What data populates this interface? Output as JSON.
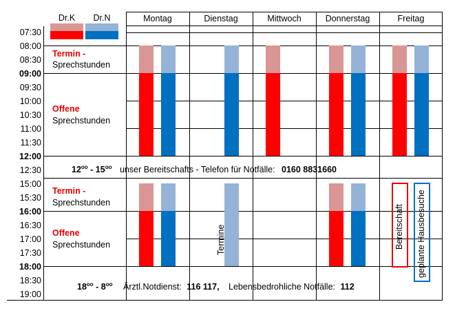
{
  "legend": {
    "doctor_k": "Dr.K",
    "doctor_n": "Dr.N"
  },
  "days": [
    "Montag",
    "Dienstag",
    "Mittwoch",
    "Donnerstag",
    "Freitag"
  ],
  "times": [
    {
      "label": "07:30",
      "bold": false
    },
    {
      "label": "08:00",
      "bold": false
    },
    {
      "label": "08:30",
      "bold": false
    },
    {
      "label": "09:00",
      "bold": true
    },
    {
      "label": "09:30",
      "bold": false
    },
    {
      "label": "10:00",
      "bold": false
    },
    {
      "label": "10:30",
      "bold": false
    },
    {
      "label": "11:00",
      "bold": false
    },
    {
      "label": "11:30",
      "bold": false
    },
    {
      "label": "12:00",
      "bold": true
    },
    {
      "label": "12:30",
      "bold": false
    },
    {
      "label": "15:00",
      "bold": false
    },
    {
      "label": "15:30",
      "bold": false
    },
    {
      "label": "16:00",
      "bold": true
    },
    {
      "label": "16:30",
      "bold": false
    },
    {
      "label": "17:00",
      "bold": false
    },
    {
      "label": "17:30",
      "bold": false
    },
    {
      "label": "18:00",
      "bold": true
    },
    {
      "label": "18:30",
      "bold": false
    },
    {
      "label": "19:00",
      "bold": false
    }
  ],
  "morning": {
    "termin": "Termin",
    "termin_dash": " -",
    "sprechstunden1": "Sprechstunden",
    "offene": "Offene",
    "sprechstunden2": "Sprechstunden"
  },
  "afternoon": {
    "termin": "Termin",
    "termin_dash": " -",
    "sprechstunden1": "Sprechstunden",
    "offene": "Offene",
    "sprechstunden2": "Sprechstunden"
  },
  "noon_note": {
    "hours_start": "12",
    "hours_start_sup": "oo",
    "hours_sep": " - ",
    "hours_end": "15",
    "hours_end_sup": "oo",
    "text": "unser Bereitschafts - Telefon für Notfälle:",
    "phone": "0160 8831660"
  },
  "evening_note": {
    "hours_start": "18",
    "hours_start_sup": "oo",
    "hours_sep": " - ",
    "hours_end": "8",
    "hours_end_sup": "oo",
    "notdienst_label": "Ärztl.Notdienst:",
    "notdienst_number": "116 117,",
    "notfall_label": "Lebensbedrohliche Notfälle:",
    "notfall_number": "112"
  },
  "friday_afternoon": {
    "bereitschaft": "Bereitschaft",
    "hausbesuche": "geplante Hausbesuche"
  },
  "tuesday_afternoon": {
    "termine": "Termine"
  },
  "colors": {
    "k_appointment": "#d99694",
    "k_open": "#ff0000",
    "n_appointment": "#95b3d7",
    "n_open": "#0070c0",
    "red_text": "#e60000"
  }
}
